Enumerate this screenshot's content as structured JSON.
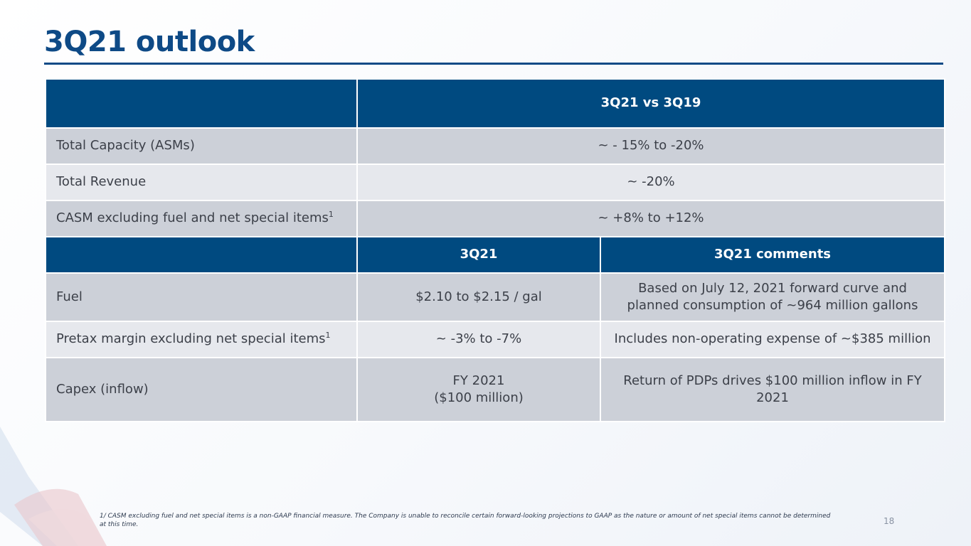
{
  "title": "3Q21 outlook",
  "table": {
    "top_header": "3Q21 vs 3Q19",
    "top_rows": [
      {
        "label": "Total Capacity (ASMs)",
        "value": "~ - 15% to -20%"
      },
      {
        "label": "Total Revenue",
        "value": "~ -20%"
      },
      {
        "label": "CASM excluding fuel and net special items",
        "sup": "1",
        "value": "~ +8% to +12%"
      }
    ],
    "sub_headers": [
      "3Q21",
      "3Q21 comments"
    ],
    "bottom_rows": [
      {
        "label": "Fuel",
        "value": "$2.10 to $2.15 / gal",
        "comment": "Based on July 12, 2021 forward curve and planned consumption of ~964 million gallons"
      },
      {
        "label": "Pretax margin excluding net special items",
        "sup": "1",
        "value": "~ -3% to -7%",
        "comment": "Includes non-operating expense of ~$385 million"
      },
      {
        "label": "Capex (inflow)",
        "value_line1": "FY 2021",
        "value_line2": "($100 million)",
        "comment": "Return of PDPs drives $100 million inflow in FY 2021"
      }
    ]
  },
  "footnote": "1/ CASM excluding fuel and net special items is a non-GAAP financial measure. The Company is unable to reconcile certain forward-looking projections to GAAP as the nature or amount of net special items cannot be determined at this time.",
  "page_number": "18",
  "colors": {
    "brand_blue": "#0e4a86",
    "header_blue": "#004a80",
    "row_dark": "#ccd0d8",
    "row_light": "#e6e8ed"
  }
}
